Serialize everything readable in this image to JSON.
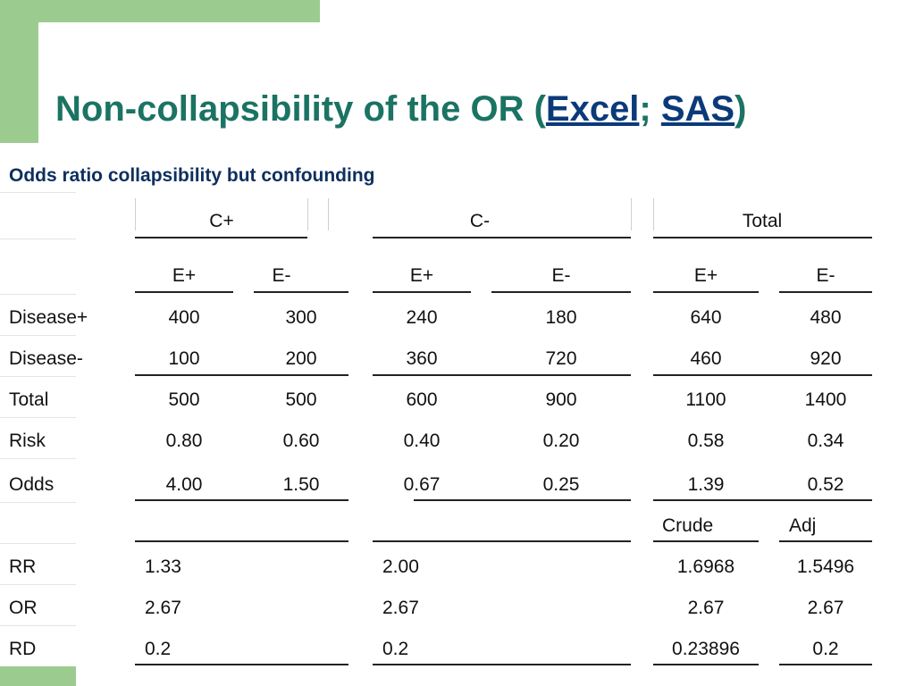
{
  "title": {
    "prefix": "Non-collapsibility of the OR (",
    "link1": "Excel",
    "separator": "; ",
    "link2": "SAS",
    "suffix": ")"
  },
  "subtitle": "Odds ratio collapsibility but confounding",
  "groups": [
    "C+",
    "C-",
    "Total"
  ],
  "exposure_headers": [
    "E+",
    "E-",
    "E+",
    "E-",
    "E+",
    "E-"
  ],
  "rows": [
    {
      "label": "Disease+",
      "values": [
        "400",
        "300",
        "240",
        "180",
        "640",
        "480"
      ]
    },
    {
      "label": "Disease-",
      "values": [
        "100",
        "200",
        "360",
        "720",
        "460",
        "920"
      ]
    },
    {
      "label": "Total",
      "values": [
        "500",
        "500",
        "600",
        "900",
        "1100",
        "1400"
      ]
    },
    {
      "label": "Risk",
      "values": [
        "0.80",
        "0.60",
        "0.40",
        "0.20",
        "0.58",
        "0.34"
      ]
    },
    {
      "label": "Odds",
      "values": [
        "4.00",
        "1.50",
        "0.67",
        "0.25",
        "1.39",
        "0.52"
      ]
    }
  ],
  "summary_headers": {
    "crude": "Crude",
    "adj": "Adj"
  },
  "summary_rows": [
    {
      "label": "RR",
      "c_plus": "1.33",
      "c_minus": "2.00",
      "crude": "1.6968",
      "adj": "1.5496"
    },
    {
      "label": "OR",
      "c_plus": "2.67",
      "c_minus": "2.67",
      "crude": "2.67",
      "adj": "2.67"
    },
    {
      "label": "RD",
      "c_plus": "0.2",
      "c_minus": "0.2",
      "crude": "0.23896",
      "adj": "0.2"
    }
  ]
}
